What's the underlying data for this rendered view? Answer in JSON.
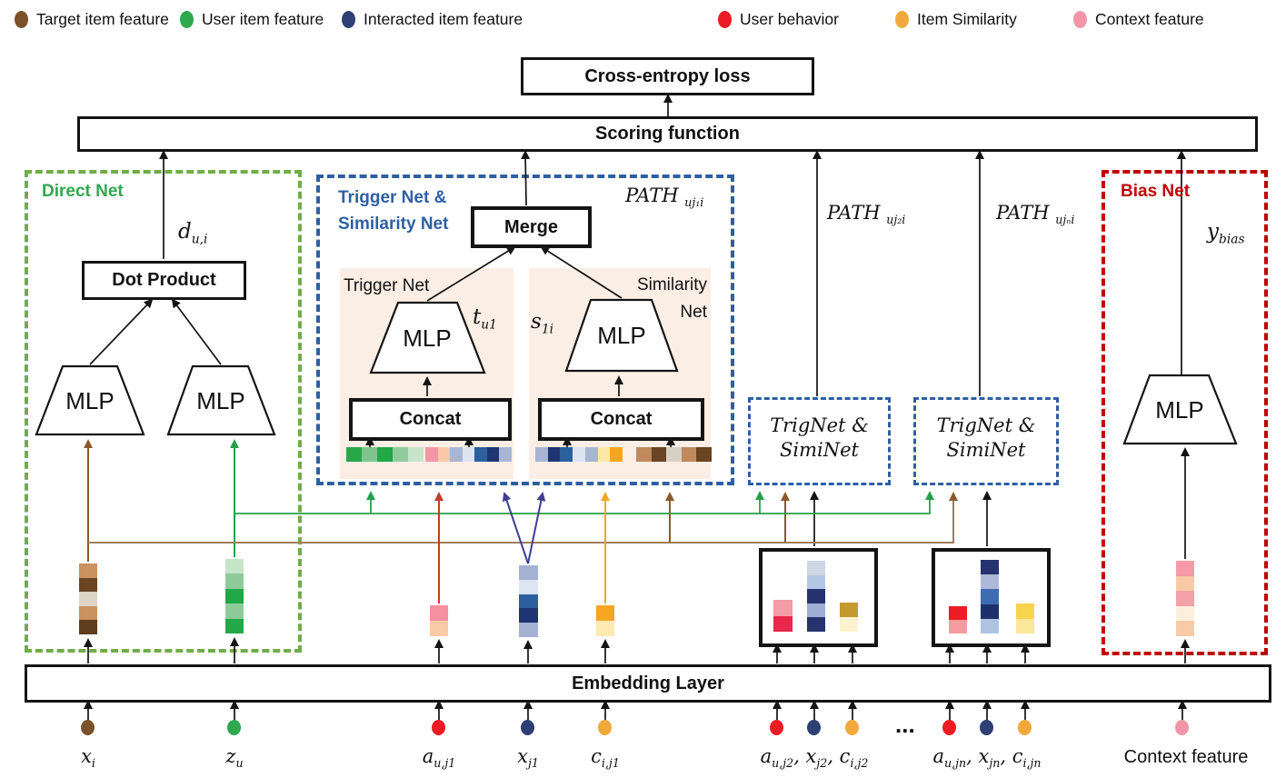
{
  "legend": {
    "items": [
      {
        "label": "Target item feature",
        "color": "#7B5129"
      },
      {
        "label": "User item feature",
        "color": "#2EA94E"
      },
      {
        "label": "Interacted item feature",
        "color": "#2E3F74"
      },
      {
        "label": "User behavior",
        "color": "#EC1C24"
      },
      {
        "label": "Item Similarity",
        "color": "#F2A93B"
      },
      {
        "label": "Context feature",
        "color": "#F295A9"
      }
    ]
  },
  "loss": {
    "label": "Cross-entropy loss"
  },
  "scoring": {
    "label": "Scoring function"
  },
  "embedding_layer": {
    "label": "Embedding Layer"
  },
  "direct_net": {
    "title": "Direct Net",
    "dot_product_label": "Dot Product",
    "mlp_left": "MLP",
    "mlp_right": "MLP",
    "output": [
      {
        "t": "d"
      },
      {
        "s": "u,i"
      }
    ]
  },
  "trigger_similarity_net": {
    "title_line1": "Trigger Net &",
    "title_line2": "Similarity Net",
    "path_label": [
      {
        "t": "PATH "
      },
      {
        "s": "uj₁i"
      }
    ],
    "merge_label": "Merge",
    "trigger_panel": {
      "title": "Trigger Net",
      "mlp": "MLP",
      "output": [
        {
          "t": "t"
        },
        {
          "s": "u1"
        }
      ],
      "concat_label": "Concat"
    },
    "similarity_panel": {
      "title_line1": "Similarity",
      "title_line2": "Net",
      "mlp": "MLP",
      "output": [
        {
          "t": "s"
        },
        {
          "s": "1i"
        }
      ],
      "concat_label": "Concat"
    }
  },
  "paths": {
    "path2": [
      {
        "t": "PATH "
      },
      {
        "s": "uj₂i"
      }
    ],
    "path_n": [
      {
        "t": "PATH "
      },
      {
        "s": "ujₙi"
      }
    ]
  },
  "trignet_boxes": {
    "box1_line1": "TrigNet &",
    "box1_line2": "SimiNet",
    "box2_line1": "TrigNet &",
    "box2_line2": "SimiNet"
  },
  "bias_net": {
    "title": "Bias Net",
    "mlp": "MLP",
    "output": [
      {
        "t": "y"
      },
      {
        "s": "bias"
      }
    ]
  },
  "inputs": {
    "x_i": [
      {
        "t": "x"
      },
      {
        "s": "i"
      }
    ],
    "z_u": [
      {
        "t": "z"
      },
      {
        "s": "u"
      }
    ],
    "a_uj1": [
      {
        "t": "a"
      },
      {
        "s": "u,j1"
      }
    ],
    "x_j1": [
      {
        "t": "x"
      },
      {
        "s": "j1"
      }
    ],
    "c_ij1": [
      {
        "t": "c"
      },
      {
        "s": "i,j1"
      }
    ],
    "group2": [
      {
        "t": "a"
      },
      {
        "s": "u,j2"
      },
      {
        "t": ", x"
      },
      {
        "s": "j2"
      },
      {
        "t": ", c"
      },
      {
        "s": "i,j2"
      }
    ],
    "group_n": [
      {
        "t": "a"
      },
      {
        "s": "u,jn"
      },
      {
        "t": ", x"
      },
      {
        "s": "jn"
      },
      {
        "t": ", c"
      },
      {
        "s": "i,jn"
      }
    ],
    "ellipsis": "...",
    "context_label": "Context feature"
  },
  "embeddings": {
    "target_item": [
      "#C9925E",
      "#6B4423",
      "#DDD5C8",
      "#C9925E",
      "#5F3D1E"
    ],
    "user_item": [
      "#C5E4C8",
      "#8FCA99",
      "#1FA845",
      "#8FCA99",
      "#22A847"
    ],
    "user_behavior_1": [
      "#F590A0",
      "#FACBA4"
    ],
    "interacted_item_1": [
      "#A5B2D4",
      "#DDE5F2",
      "#2B5F9E",
      "#1F3473",
      "#A5B2D4"
    ],
    "item_similarity_1": [
      "#F6A622",
      "#FDE9B2"
    ],
    "context": [
      "#F59AA6",
      "#F8C9A4",
      "#F4A0A8",
      "#FCF0DC",
      "#F8CBA6"
    ],
    "concat_strip_user": [
      "#28A74A",
      "#7FC48E",
      "#22A847",
      "#90CB9D",
      "#C8E5CB"
    ],
    "concat_strip_trigger": [
      "#F297A4",
      "#FAC8A6",
      "#A8B6D4",
      "#DCE4F0",
      "#2B5F9E",
      "#1F3473",
      "#A8B6D4"
    ],
    "concat_strip_similarity": [
      "#A8B6D4",
      "#1F3473",
      "#2B5F9E",
      "#DCE4F0",
      "#A8B6D4",
      "#FBE9A8",
      "#F5A623"
    ],
    "concat_strip_target": [
      "#C08A5C",
      "#6B4423",
      "#D8D0C5",
      "#C08A5C",
      "#6B4423"
    ],
    "group1_behavior": [
      "#F29CA6",
      "#E8274A"
    ],
    "group1_interacted": [
      "#CDD7E5",
      "#B3C6E4",
      "#27336E",
      "#9FAED3",
      "#27336E"
    ],
    "group1_similarity": [
      "#C49A2E",
      "#FBF3D0"
    ],
    "group2_behavior": [
      "#EC1C24",
      "#F59CA0"
    ],
    "group2_interacted": [
      "#27336E",
      "#AEB8D8",
      "#3D6CB0",
      "#1F2F6B",
      "#AFC4E2"
    ],
    "group2_similarity": [
      "#F8D44C",
      "#FBE899"
    ]
  },
  "colors": {
    "target_brown": "#7B5129",
    "user_green": "#2EA94E",
    "interacted_navy": "#2E3F74",
    "behavior_red": "#EC1C24",
    "similarity_amber": "#F2A93B",
    "context_pink": "#F295A9",
    "direct_net_border": "#70AD47",
    "trigger_net_border": "#2E5FA3",
    "bias_net_border": "#C00000",
    "panel_pink": "#FBEEE5"
  }
}
